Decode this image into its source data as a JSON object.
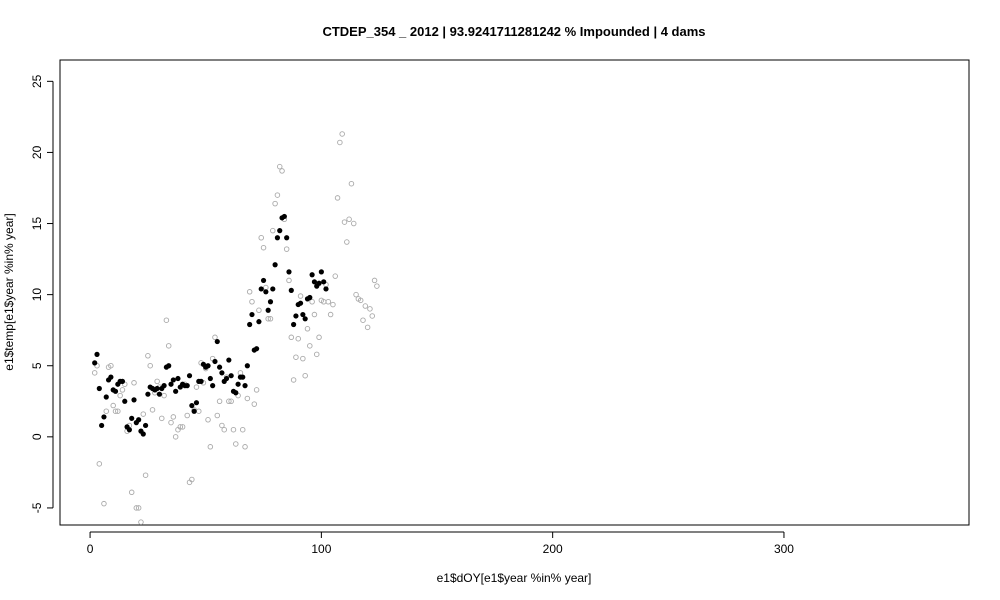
{
  "chart_data": {
    "type": "scatter",
    "title": "CTDEP_354 _ 2012   |   93.9241711281242  % Impounded |  4  dams",
    "xlabel": "e1$dOY[e1$year %in% year]",
    "ylabel": "e1$temp[e1$year %in% year]",
    "xlim": [
      -13,
      380
    ],
    "ylim": [
      -6.2,
      26.5
    ],
    "x_ticks": [
      "0",
      "100",
      "200",
      "300"
    ],
    "y_ticks": [
      "-5",
      "0",
      "5",
      "10",
      "15",
      "20",
      "25"
    ],
    "grid": false,
    "legend": "none",
    "colors": {
      "filled": "#000000",
      "open": "#aaaaaa",
      "frame": "#000000"
    },
    "series": [
      {
        "style": "filled",
        "points": [
          [
            2,
            5.2
          ],
          [
            3,
            5.8
          ],
          [
            4,
            3.4
          ],
          [
            5,
            0.8
          ],
          [
            6,
            1.4
          ],
          [
            7,
            2.8
          ],
          [
            8,
            4.0
          ],
          [
            9,
            4.2
          ],
          [
            10,
            3.3
          ],
          [
            11,
            3.2
          ],
          [
            12,
            3.7
          ],
          [
            13,
            3.9
          ],
          [
            14,
            3.9
          ],
          [
            15,
            2.5
          ],
          [
            16,
            0.7
          ],
          [
            17,
            0.5
          ],
          [
            18,
            1.3
          ],
          [
            19,
            2.6
          ],
          [
            20,
            1.0
          ],
          [
            21,
            1.2
          ],
          [
            22,
            0.4
          ],
          [
            23,
            0.2
          ],
          [
            24,
            0.8
          ],
          [
            25,
            3.0
          ],
          [
            26,
            3.5
          ],
          [
            27,
            3.4
          ],
          [
            28,
            3.3
          ],
          [
            29,
            3.4
          ],
          [
            30,
            3.0
          ],
          [
            31,
            3.4
          ],
          [
            32,
            3.6
          ],
          [
            33,
            4.9
          ],
          [
            34,
            5.0
          ],
          [
            35,
            3.7
          ],
          [
            36,
            4.0
          ],
          [
            37,
            3.2
          ],
          [
            38,
            4.1
          ],
          [
            39,
            3.5
          ],
          [
            40,
            3.7
          ],
          [
            41,
            3.6
          ],
          [
            42,
            3.6
          ],
          [
            43,
            4.3
          ],
          [
            44,
            2.2
          ],
          [
            45,
            1.8
          ],
          [
            46,
            2.4
          ],
          [
            47,
            3.9
          ],
          [
            48,
            3.9
          ],
          [
            49,
            5.1
          ],
          [
            50,
            4.9
          ],
          [
            51,
            5.0
          ],
          [
            52,
            4.1
          ],
          [
            53,
            3.6
          ],
          [
            54,
            5.3
          ],
          [
            55,
            6.7
          ],
          [
            56,
            4.9
          ],
          [
            57,
            4.5
          ],
          [
            58,
            3.9
          ],
          [
            59,
            4.1
          ],
          [
            60,
            5.4
          ],
          [
            61,
            4.3
          ],
          [
            62,
            3.2
          ],
          [
            63,
            3.1
          ],
          [
            64,
            3.7
          ],
          [
            65,
            4.2
          ],
          [
            66,
            4.2
          ],
          [
            67,
            3.6
          ],
          [
            68,
            5.0
          ],
          [
            69,
            7.9
          ],
          [
            70,
            8.6
          ],
          [
            71,
            6.1
          ],
          [
            72,
            6.2
          ],
          [
            73,
            8.1
          ],
          [
            74,
            10.4
          ],
          [
            75,
            11.0
          ],
          [
            76,
            10.2
          ],
          [
            77,
            8.9
          ],
          [
            78,
            9.5
          ],
          [
            79,
            10.4
          ],
          [
            80,
            12.1
          ],
          [
            81,
            14.0
          ],
          [
            82,
            14.5
          ],
          [
            83,
            15.4
          ],
          [
            84,
            15.5
          ],
          [
            85,
            14.0
          ],
          [
            86,
            11.6
          ],
          [
            87,
            10.3
          ],
          [
            88,
            7.9
          ],
          [
            89,
            8.5
          ],
          [
            90,
            9.3
          ],
          [
            91,
            9.4
          ],
          [
            92,
            8.6
          ],
          [
            93,
            8.3
          ],
          [
            94,
            9.7
          ],
          [
            95,
            9.8
          ],
          [
            96,
            11.4
          ],
          [
            97,
            10.9
          ],
          [
            98,
            10.6
          ],
          [
            99,
            10.8
          ],
          [
            100,
            11.6
          ],
          [
            101,
            10.9
          ],
          [
            102,
            10.4
          ]
        ]
      },
      {
        "style": "open",
        "points": [
          [
            2,
            4.5
          ],
          [
            3,
            5.0
          ],
          [
            4,
            -1.9
          ],
          [
            6,
            -4.7
          ],
          [
            7,
            1.8
          ],
          [
            8,
            4.9
          ],
          [
            9,
            5.0
          ],
          [
            10,
            2.2
          ],
          [
            11,
            1.8
          ],
          [
            12,
            1.8
          ],
          [
            13,
            2.9
          ],
          [
            14,
            3.3
          ],
          [
            15,
            3.7
          ],
          [
            16,
            0.4
          ],
          [
            17,
            0.8
          ],
          [
            18,
            -3.9
          ],
          [
            19,
            3.8
          ],
          [
            20,
            -5.0
          ],
          [
            21,
            -5.0
          ],
          [
            22,
            -6.0
          ],
          [
            23,
            1.6
          ],
          [
            24,
            -2.7
          ],
          [
            25,
            5.7
          ],
          [
            26,
            5.0
          ],
          [
            27,
            1.9
          ],
          [
            28,
            3.1
          ],
          [
            29,
            3.9
          ],
          [
            30,
            3.5
          ],
          [
            31,
            1.3
          ],
          [
            32,
            2.9
          ],
          [
            33,
            8.2
          ],
          [
            34,
            6.4
          ],
          [
            35,
            1.0
          ],
          [
            36,
            1.4
          ],
          [
            37,
            0.0
          ],
          [
            38,
            0.5
          ],
          [
            39,
            0.7
          ],
          [
            40,
            0.7
          ],
          [
            41,
            3.7
          ],
          [
            42,
            1.5
          ],
          [
            43,
            -3.2
          ],
          [
            44,
            -3.0
          ],
          [
            45,
            1.9
          ],
          [
            46,
            3.5
          ],
          [
            47,
            1.8
          ],
          [
            48,
            5.2
          ],
          [
            49,
            3.8
          ],
          [
            50,
            4.8
          ],
          [
            51,
            1.2
          ],
          [
            52,
            -0.7
          ],
          [
            53,
            5.5
          ],
          [
            54,
            7.0
          ],
          [
            55,
            1.5
          ],
          [
            56,
            2.5
          ],
          [
            57,
            0.8
          ],
          [
            58,
            0.5
          ],
          [
            59,
            4.2
          ],
          [
            60,
            2.5
          ],
          [
            61,
            2.5
          ],
          [
            62,
            0.5
          ],
          [
            63,
            -0.5
          ],
          [
            64,
            2.9
          ],
          [
            65,
            4.5
          ],
          [
            66,
            0.5
          ],
          [
            67,
            -0.7
          ],
          [
            68,
            2.7
          ],
          [
            69,
            10.2
          ],
          [
            70,
            9.5
          ],
          [
            71,
            2.3
          ],
          [
            72,
            3.3
          ],
          [
            73,
            8.9
          ],
          [
            74,
            14.0
          ],
          [
            75,
            13.3
          ],
          [
            76,
            10.5
          ],
          [
            77,
            8.3
          ],
          [
            78,
            8.3
          ],
          [
            79,
            14.5
          ],
          [
            80,
            16.4
          ],
          [
            81,
            17.0
          ],
          [
            82,
            19.0
          ],
          [
            83,
            18.7
          ],
          [
            84,
            15.3
          ],
          [
            85,
            13.2
          ],
          [
            86,
            11.0
          ],
          [
            87,
            7.0
          ],
          [
            88,
            4.0
          ],
          [
            89,
            5.6
          ],
          [
            90,
            6.9
          ],
          [
            91,
            9.9
          ],
          [
            92,
            5.5
          ],
          [
            93,
            4.3
          ],
          [
            94,
            7.6
          ],
          [
            95,
            6.4
          ],
          [
            96,
            9.5
          ],
          [
            97,
            8.6
          ],
          [
            98,
            5.8
          ],
          [
            99,
            7.0
          ],
          [
            100,
            9.6
          ],
          [
            101,
            9.5
          ],
          [
            102,
            10.7
          ],
          [
            103,
            9.5
          ],
          [
            104,
            8.6
          ],
          [
            105,
            9.3
          ],
          [
            106,
            11.3
          ],
          [
            107,
            16.8
          ],
          [
            108,
            20.7
          ],
          [
            109,
            21.3
          ],
          [
            110,
            15.1
          ],
          [
            111,
            13.7
          ],
          [
            112,
            15.3
          ],
          [
            113,
            17.8
          ],
          [
            114,
            15.0
          ],
          [
            115,
            10.0
          ],
          [
            116,
            9.7
          ],
          [
            117,
            9.6
          ],
          [
            118,
            8.2
          ],
          [
            119,
            9.2
          ],
          [
            120,
            7.7
          ],
          [
            121,
            9.0
          ],
          [
            122,
            8.5
          ],
          [
            123,
            11.0
          ],
          [
            124,
            10.6
          ]
        ]
      }
    ]
  }
}
